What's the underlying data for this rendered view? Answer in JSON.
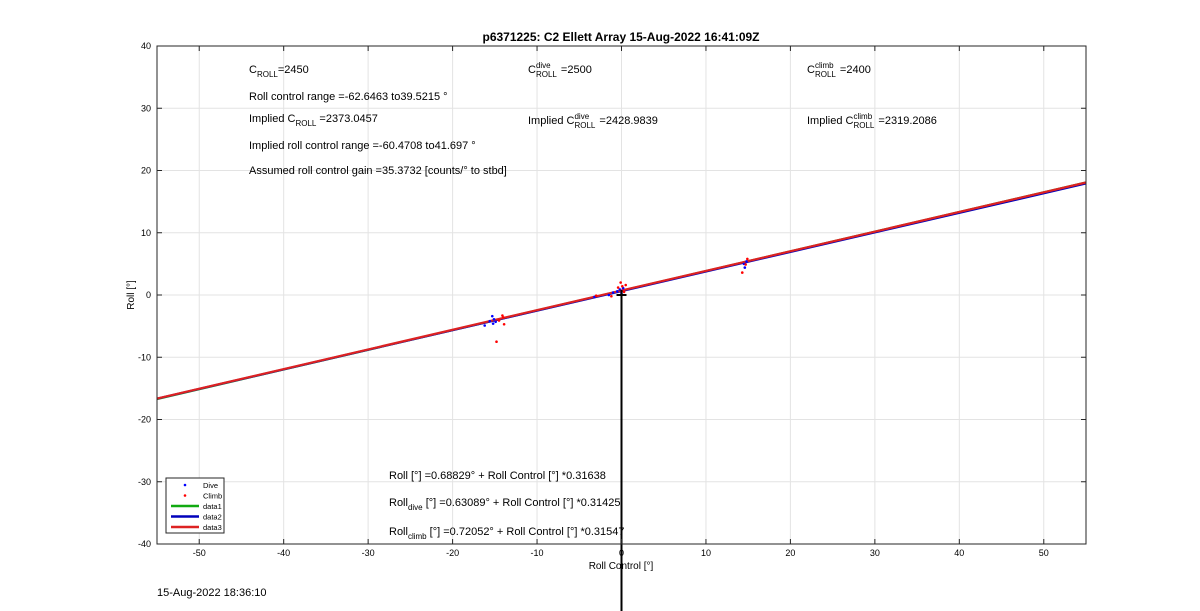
{
  "chart_data": {
    "type": "scatter",
    "title": "p6371225: C2 Ellett Array 15-Aug-2022 16:41:09Z",
    "xlabel": "Roll Control [°]",
    "ylabel": "Roll [°]",
    "xlim": [
      -55,
      55
    ],
    "ylim": [
      -40,
      40
    ],
    "xticks": [
      -50,
      -40,
      -30,
      -20,
      -10,
      0,
      10,
      20,
      30,
      40,
      50
    ],
    "yticks": [
      -40,
      -30,
      -20,
      -10,
      0,
      10,
      20,
      30,
      40
    ],
    "grid": true,
    "legend_position": "bottom-left",
    "series": [
      {
        "name": "Dive",
        "kind": "points",
        "color": "#0000ff",
        "points": [
          [
            -16.2,
            -4.9
          ],
          [
            -15.6,
            -4.2
          ],
          [
            -15.3,
            -3.4
          ],
          [
            -15.2,
            -4.6
          ],
          [
            -15.1,
            -3.9
          ],
          [
            -14.9,
            -4.3
          ],
          [
            -3.2,
            -0.3
          ],
          [
            -1.5,
            0.0
          ],
          [
            -1.0,
            0.4
          ],
          [
            -0.5,
            0.6
          ],
          [
            -0.2,
            0.9
          ],
          [
            0.0,
            0.3
          ],
          [
            0.2,
            1.1
          ],
          [
            14.5,
            5.0
          ],
          [
            14.6,
            4.4
          ],
          [
            14.8,
            5.4
          ]
        ]
      },
      {
        "name": "Climb",
        "kind": "points",
        "color": "#ff0000",
        "points": [
          [
            -14.1,
            -3.3
          ],
          [
            -14.0,
            -3.6
          ],
          [
            -13.9,
            -4.7
          ],
          [
            -14.8,
            -7.5
          ],
          [
            -14.5,
            -4.1
          ],
          [
            -3.0,
            -0.1
          ],
          [
            -1.2,
            -0.2
          ],
          [
            -0.4,
            1.2
          ],
          [
            -0.1,
            2.0
          ],
          [
            0.1,
            1.4
          ],
          [
            0.3,
            0.5
          ],
          [
            0.5,
            1.6
          ],
          [
            14.3,
            3.6
          ],
          [
            14.7,
            4.9
          ],
          [
            14.9,
            5.8
          ]
        ]
      },
      {
        "name": "data1",
        "kind": "line",
        "color": "#11aa11",
        "intercept": 0.68829,
        "slope": 0.31638
      },
      {
        "name": "data2",
        "kind": "line",
        "color": "#0000bb",
        "intercept": 0.63089,
        "slope": 0.31425
      },
      {
        "name": "data3",
        "kind": "line",
        "color": "#dd2222",
        "intercept": 0.72052,
        "slope": 0.31547
      }
    ],
    "marker": {
      "x": 0,
      "y": 0,
      "symbol": "+",
      "color": "#000000"
    },
    "annotations": {
      "c_roll": {
        "prefix": "C",
        "sub": "ROLL",
        "value": "=2450"
      },
      "c_dive": {
        "prefix": "C",
        "sup": "dive",
        "sub": "ROLL",
        "value": " =2500"
      },
      "c_climb": {
        "prefix": "C",
        "sup": "climb",
        "sub": "ROLL",
        "value": " =2400"
      },
      "roll_range": "Roll control range =-62.6463 to39.5215 °",
      "implied_c_roll": {
        "prefix": "Implied C",
        "sub": "ROLL",
        "value": " =2373.0457"
      },
      "implied_c_dive": {
        "prefix": "Implied C",
        "sup": "dive",
        "sub": "ROLL",
        "value": " =2428.9839"
      },
      "implied_c_climb": {
        "prefix": "Implied C",
        "sup": "climb",
        "sub": "ROLL",
        "value": " =2319.2086"
      },
      "implied_range": "Implied roll control range =-60.4708 to41.697 °",
      "gain": "Assumed roll control gain =35.3732 [counts/° to stbd]",
      "eq_all": {
        "prefix": "Roll [°] =0.68829° + Roll Control [°] *0.31638"
      },
      "eq_dive": {
        "prefix": "Roll",
        "sub": "dive",
        "value": " [°] =0.63089° + Roll Control [°] *0.31425"
      },
      "eq_climb": {
        "prefix": "Roll",
        "sub": "climb",
        "value": " [°] =0.72052° + Roll Control [°] *0.31547"
      }
    }
  },
  "timestamp": "15-Aug-2022 18:36:10"
}
